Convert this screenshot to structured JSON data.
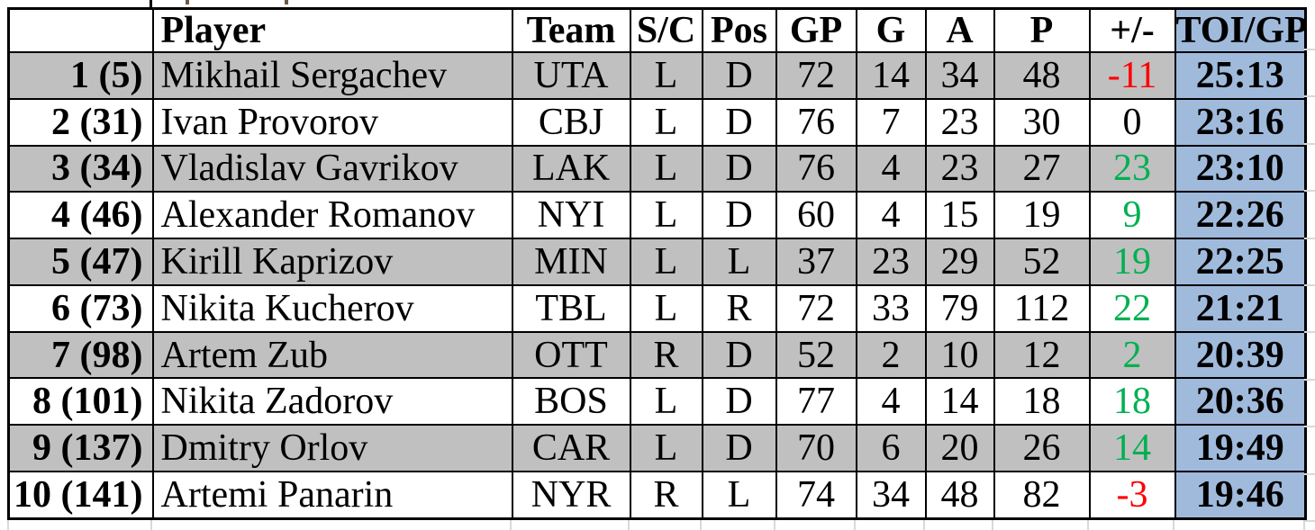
{
  "sheet": {
    "columns": [
      {
        "key": "rank",
        "label": ""
      },
      {
        "key": "player",
        "label": "Player"
      },
      {
        "key": "team",
        "label": "Team"
      },
      {
        "key": "sc",
        "label": "S/C"
      },
      {
        "key": "pos",
        "label": "Pos"
      },
      {
        "key": "gp",
        "label": "GP"
      },
      {
        "key": "g",
        "label": "G"
      },
      {
        "key": "a",
        "label": "A"
      },
      {
        "key": "p",
        "label": "P"
      },
      {
        "key": "plusminus",
        "label": "+/-"
      },
      {
        "key": "toi",
        "label": "TOI/GP"
      }
    ],
    "rows": [
      {
        "rank": "1 (5)",
        "player": "Mikhail Sergachev",
        "team": "UTA",
        "sc": "L",
        "pos": "D",
        "gp": "72",
        "g": "14",
        "a": "34",
        "p": "48",
        "plusminus": "-11",
        "toi": "25:13"
      },
      {
        "rank": "2 (31)",
        "player": "Ivan Provorov",
        "team": "CBJ",
        "sc": "L",
        "pos": "D",
        "gp": "76",
        "g": "7",
        "a": "23",
        "p": "30",
        "plusminus": "0",
        "toi": "23:16"
      },
      {
        "rank": "3 (34)",
        "player": "Vladislav Gavrikov",
        "team": "LAK",
        "sc": "L",
        "pos": "D",
        "gp": "76",
        "g": "4",
        "a": "23",
        "p": "27",
        "plusminus": "23",
        "toi": "23:10"
      },
      {
        "rank": "4 (46)",
        "player": "Alexander Romanov",
        "team": "NYI",
        "sc": "L",
        "pos": "D",
        "gp": "60",
        "g": "4",
        "a": "15",
        "p": "19",
        "plusminus": "9",
        "toi": "22:26"
      },
      {
        "rank": "5 (47)",
        "player": "Kirill Kaprizov",
        "team": "MIN",
        "sc": "L",
        "pos": "L",
        "gp": "37",
        "g": "23",
        "a": "29",
        "p": "52",
        "plusminus": "19",
        "toi": "22:25"
      },
      {
        "rank": "6 (73)",
        "player": "Nikita Kucherov",
        "team": "TBL",
        "sc": "L",
        "pos": "R",
        "gp": "72",
        "g": "33",
        "a": "79",
        "p": "112",
        "plusminus": "22",
        "toi": "21:21"
      },
      {
        "rank": "7 (98)",
        "player": "Artem Zub",
        "team": "OTT",
        "sc": "R",
        "pos": "D",
        "gp": "52",
        "g": "2",
        "a": "10",
        "p": "12",
        "plusminus": "2",
        "toi": "20:39"
      },
      {
        "rank": "8 (101)",
        "player": "Nikita Zadorov",
        "team": "BOS",
        "sc": "L",
        "pos": "D",
        "gp": "77",
        "g": "4",
        "a": "14",
        "p": "18",
        "plusminus": "18",
        "toi": "20:36"
      },
      {
        "rank": "9 (137)",
        "player": "Dmitry Orlov",
        "team": "CAR",
        "sc": "L",
        "pos": "D",
        "gp": "70",
        "g": "6",
        "a": "20",
        "p": "26",
        "plusminus": "14",
        "toi": "19:49"
      },
      {
        "rank": "10 (141)",
        "player": "Artemi Panarin",
        "team": "NYR",
        "sc": "R",
        "pos": "L",
        "gp": "74",
        "g": "34",
        "a": "48",
        "p": "82",
        "plusminus": "-3",
        "toi": "19:46"
      }
    ],
    "colors": {
      "band_gray": "#C0C0C0",
      "toi_blue": "#A0BADC",
      "plus_green": "#00B050",
      "minus_red": "#FF0000",
      "zero_black": "#000000",
      "border_black": "#000000",
      "gridline_gray": "#D9D9D9"
    }
  }
}
